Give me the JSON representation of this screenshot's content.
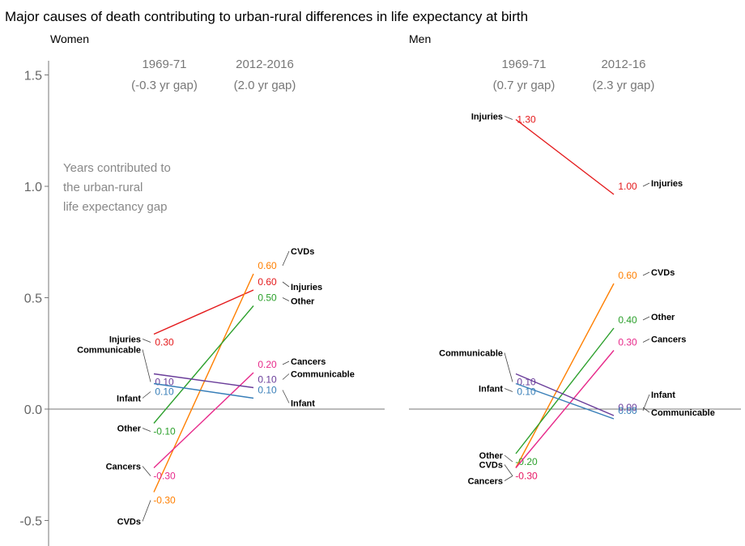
{
  "title": "Major causes of death contributing to urban-rural differences in life expectancy at birth",
  "note": [
    "Years contributed to",
    "the urban-rural",
    "life expectancy gap"
  ],
  "colors": {
    "Injuries": "#e41a1c",
    "CVDs": "#ff7f00",
    "Other": "#2ca02c",
    "Cancers": "#e7298a",
    "Communicable": "#6a3d9a",
    "Infant": "#377eb8"
  },
  "chart_data": {
    "type": "line",
    "ylim": [
      -0.6,
      1.6
    ],
    "yticks": [
      -0.5,
      0.0,
      0.5,
      1.0,
      1.5
    ],
    "ytick_labels": [
      "-0.5",
      "0.0",
      "0.5",
      "1.0",
      "1.5"
    ],
    "panels": [
      {
        "name": "Women",
        "periods": [
          {
            "year": "1969-71",
            "gap": "(-0.3 yr gap)"
          },
          {
            "year": "2012-2016",
            "gap": "(2.0 yr gap)"
          }
        ],
        "series": [
          {
            "name": "Injuries",
            "start": 0.3,
            "end": 0.6,
            "start_label": "0.30",
            "end_label": "0.60"
          },
          {
            "name": "CVDs",
            "start": -0.3,
            "end": 0.6,
            "start_label": "-0.30",
            "end_label": "0.60"
          },
          {
            "name": "Other",
            "start": -0.1,
            "end": 0.5,
            "start_label": "-0.10",
            "end_label": "0.50"
          },
          {
            "name": "Cancers",
            "start": -0.3,
            "end": 0.2,
            "start_label": "-0.30",
            "end_label": "0.20"
          },
          {
            "name": "Communicable",
            "start": 0.1,
            "end": 0.1,
            "start_label": "0.10",
            "end_label": "0.10"
          },
          {
            "name": "Infant",
            "start": 0.1,
            "end": 0.1,
            "start_label": "0.10",
            "end_label": "0.10"
          }
        ]
      },
      {
        "name": "Men",
        "periods": [
          {
            "year": "1969-71",
            "gap": "(0.7 yr gap)"
          },
          {
            "year": "2012-16",
            "gap": "(2.3 yr gap)"
          }
        ],
        "series": [
          {
            "name": "Injuries",
            "start": 1.3,
            "end": 1.0,
            "start_label": "1.30",
            "end_label": "1.00"
          },
          {
            "name": "CVDs",
            "start": -0.3,
            "end": 0.6,
            "start_label": "-0.30",
            "end_label": "0.60"
          },
          {
            "name": "Other",
            "start": -0.2,
            "end": 0.4,
            "start_label": "-0.20",
            "end_label": "0.40"
          },
          {
            "name": "Cancers",
            "start": -0.3,
            "end": 0.3,
            "start_label": "-0.30",
            "end_label": "0.30"
          },
          {
            "name": "Communicable",
            "start": 0.1,
            "end": 0.0,
            "start_label": "0.10",
            "end_label": "0.00"
          },
          {
            "name": "Infant",
            "start": 0.1,
            "end": 0.0,
            "start_label": "0.10",
            "end_label": "0.00"
          }
        ]
      }
    ]
  }
}
